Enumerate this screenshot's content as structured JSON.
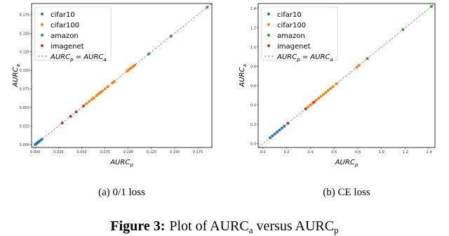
{
  "chart_data": [
    {
      "type": "scatter",
      "xlabel": [
        "AURC",
        "p"
      ],
      "ylabel": [
        "AURC",
        "a"
      ],
      "xlim": [
        -0.004,
        0.19
      ],
      "ylim": [
        -0.004,
        0.19
      ],
      "xticks": [
        {
          "value": 0,
          "label": "0.000"
        },
        0.025,
        {
          "value": 0.05,
          "label": "0.050"
        },
        0.075,
        {
          "value": 0.1,
          "label": "0.100"
        },
        0.125,
        {
          "value": 0.15,
          "label": "0.150"
        },
        0.175
      ],
      "yticks": [
        {
          "value": 0,
          "label": "0.000"
        },
        0.025,
        {
          "value": 0.05,
          "label": "0.050"
        },
        0.075,
        {
          "value": 0.1,
          "label": "0.100"
        },
        0.125,
        {
          "value": 0.15,
          "label": "0.150"
        },
        0.175
      ],
      "series": [
        {
          "name": "cifar10",
          "color": "#1f77b4",
          "x": [
            0.0,
            0.001,
            0.002,
            0.003,
            0.004,
            0.005,
            0.007
          ],
          "y": [
            0.0,
            0.001,
            0.002,
            0.003,
            0.004,
            0.005,
            0.007
          ]
        },
        {
          "name": "cifar100",
          "color": "#ff7f0e",
          "x": [
            0.038,
            0.055,
            0.058,
            0.061,
            0.063,
            0.066,
            0.068,
            0.07,
            0.072,
            0.075,
            0.078,
            0.083,
            0.085,
            0.099,
            0.101,
            0.103,
            0.105,
            0.107
          ],
          "y": [
            0.038,
            0.055,
            0.058,
            0.061,
            0.063,
            0.066,
            0.068,
            0.07,
            0.072,
            0.075,
            0.078,
            0.083,
            0.085,
            0.099,
            0.101,
            0.103,
            0.105,
            0.107
          ]
        },
        {
          "name": "amazon",
          "color": "#2ca02c",
          "x": [
            0.122,
            0.146,
            0.185
          ],
          "y": [
            0.122,
            0.146,
            0.185
          ]
        },
        {
          "name": "imagenet",
          "color": "#d62728",
          "x": [
            0.029,
            0.038,
            0.044,
            0.052
          ],
          "y": [
            0.029,
            0.038,
            0.044,
            0.052
          ]
        }
      ],
      "reference_label": [
        "AURC",
        "p",
        " = AURC",
        "a"
      ],
      "subcaption": "(a) 0/1 loss"
    },
    {
      "type": "scatter",
      "xlabel": [
        "AURC",
        "p"
      ],
      "ylabel": [
        "AURC",
        "a"
      ],
      "xlim": [
        -0.04,
        1.45
      ],
      "ylim": [
        -0.04,
        1.45
      ],
      "xticks": [
        {
          "value": 0,
          "label": "0.0"
        },
        0.2,
        0.4,
        0.6,
        0.8,
        {
          "value": 1,
          "label": "1.0"
        },
        1.2,
        1.4
      ],
      "yticks": [
        {
          "value": 0,
          "label": "0.0"
        },
        0.2,
        0.4,
        0.6,
        0.8,
        {
          "value": 1,
          "label": "1.0"
        },
        1.2,
        1.4
      ],
      "series": [
        {
          "name": "cifar10",
          "color": "#1f77b4",
          "x": [
            0.06,
            0.08,
            0.1,
            0.12,
            0.14,
            0.16,
            0.18
          ],
          "y": [
            0.06,
            0.08,
            0.1,
            0.12,
            0.14,
            0.16,
            0.18
          ]
        },
        {
          "name": "cifar100",
          "color": "#ff7f0e",
          "x": [
            0.38,
            0.4,
            0.42,
            0.45,
            0.47,
            0.49,
            0.51,
            0.53,
            0.55,
            0.57,
            0.59,
            0.62,
            0.79,
            0.81
          ],
          "y": [
            0.38,
            0.4,
            0.42,
            0.45,
            0.47,
            0.49,
            0.51,
            0.53,
            0.55,
            0.57,
            0.59,
            0.62,
            0.79,
            0.81
          ]
        },
        {
          "name": "amazon",
          "color": "#2ca02c",
          "x": [
            0.88,
            1.18,
            1.42
          ],
          "y": [
            0.88,
            1.18,
            1.42
          ]
        },
        {
          "name": "imagenet",
          "color": "#d62728",
          "x": [
            0.21,
            0.36,
            0.43
          ],
          "y": [
            0.21,
            0.36,
            0.43
          ]
        }
      ],
      "reference_label": [
        "AURC",
        "p",
        " = AURC",
        "a"
      ],
      "subcaption": "(b) CE loss"
    }
  ],
  "figure_caption": {
    "label": "Figure 3:",
    "text": [
      "Plot of AURC",
      "a",
      " versus AURC",
      "p"
    ]
  }
}
